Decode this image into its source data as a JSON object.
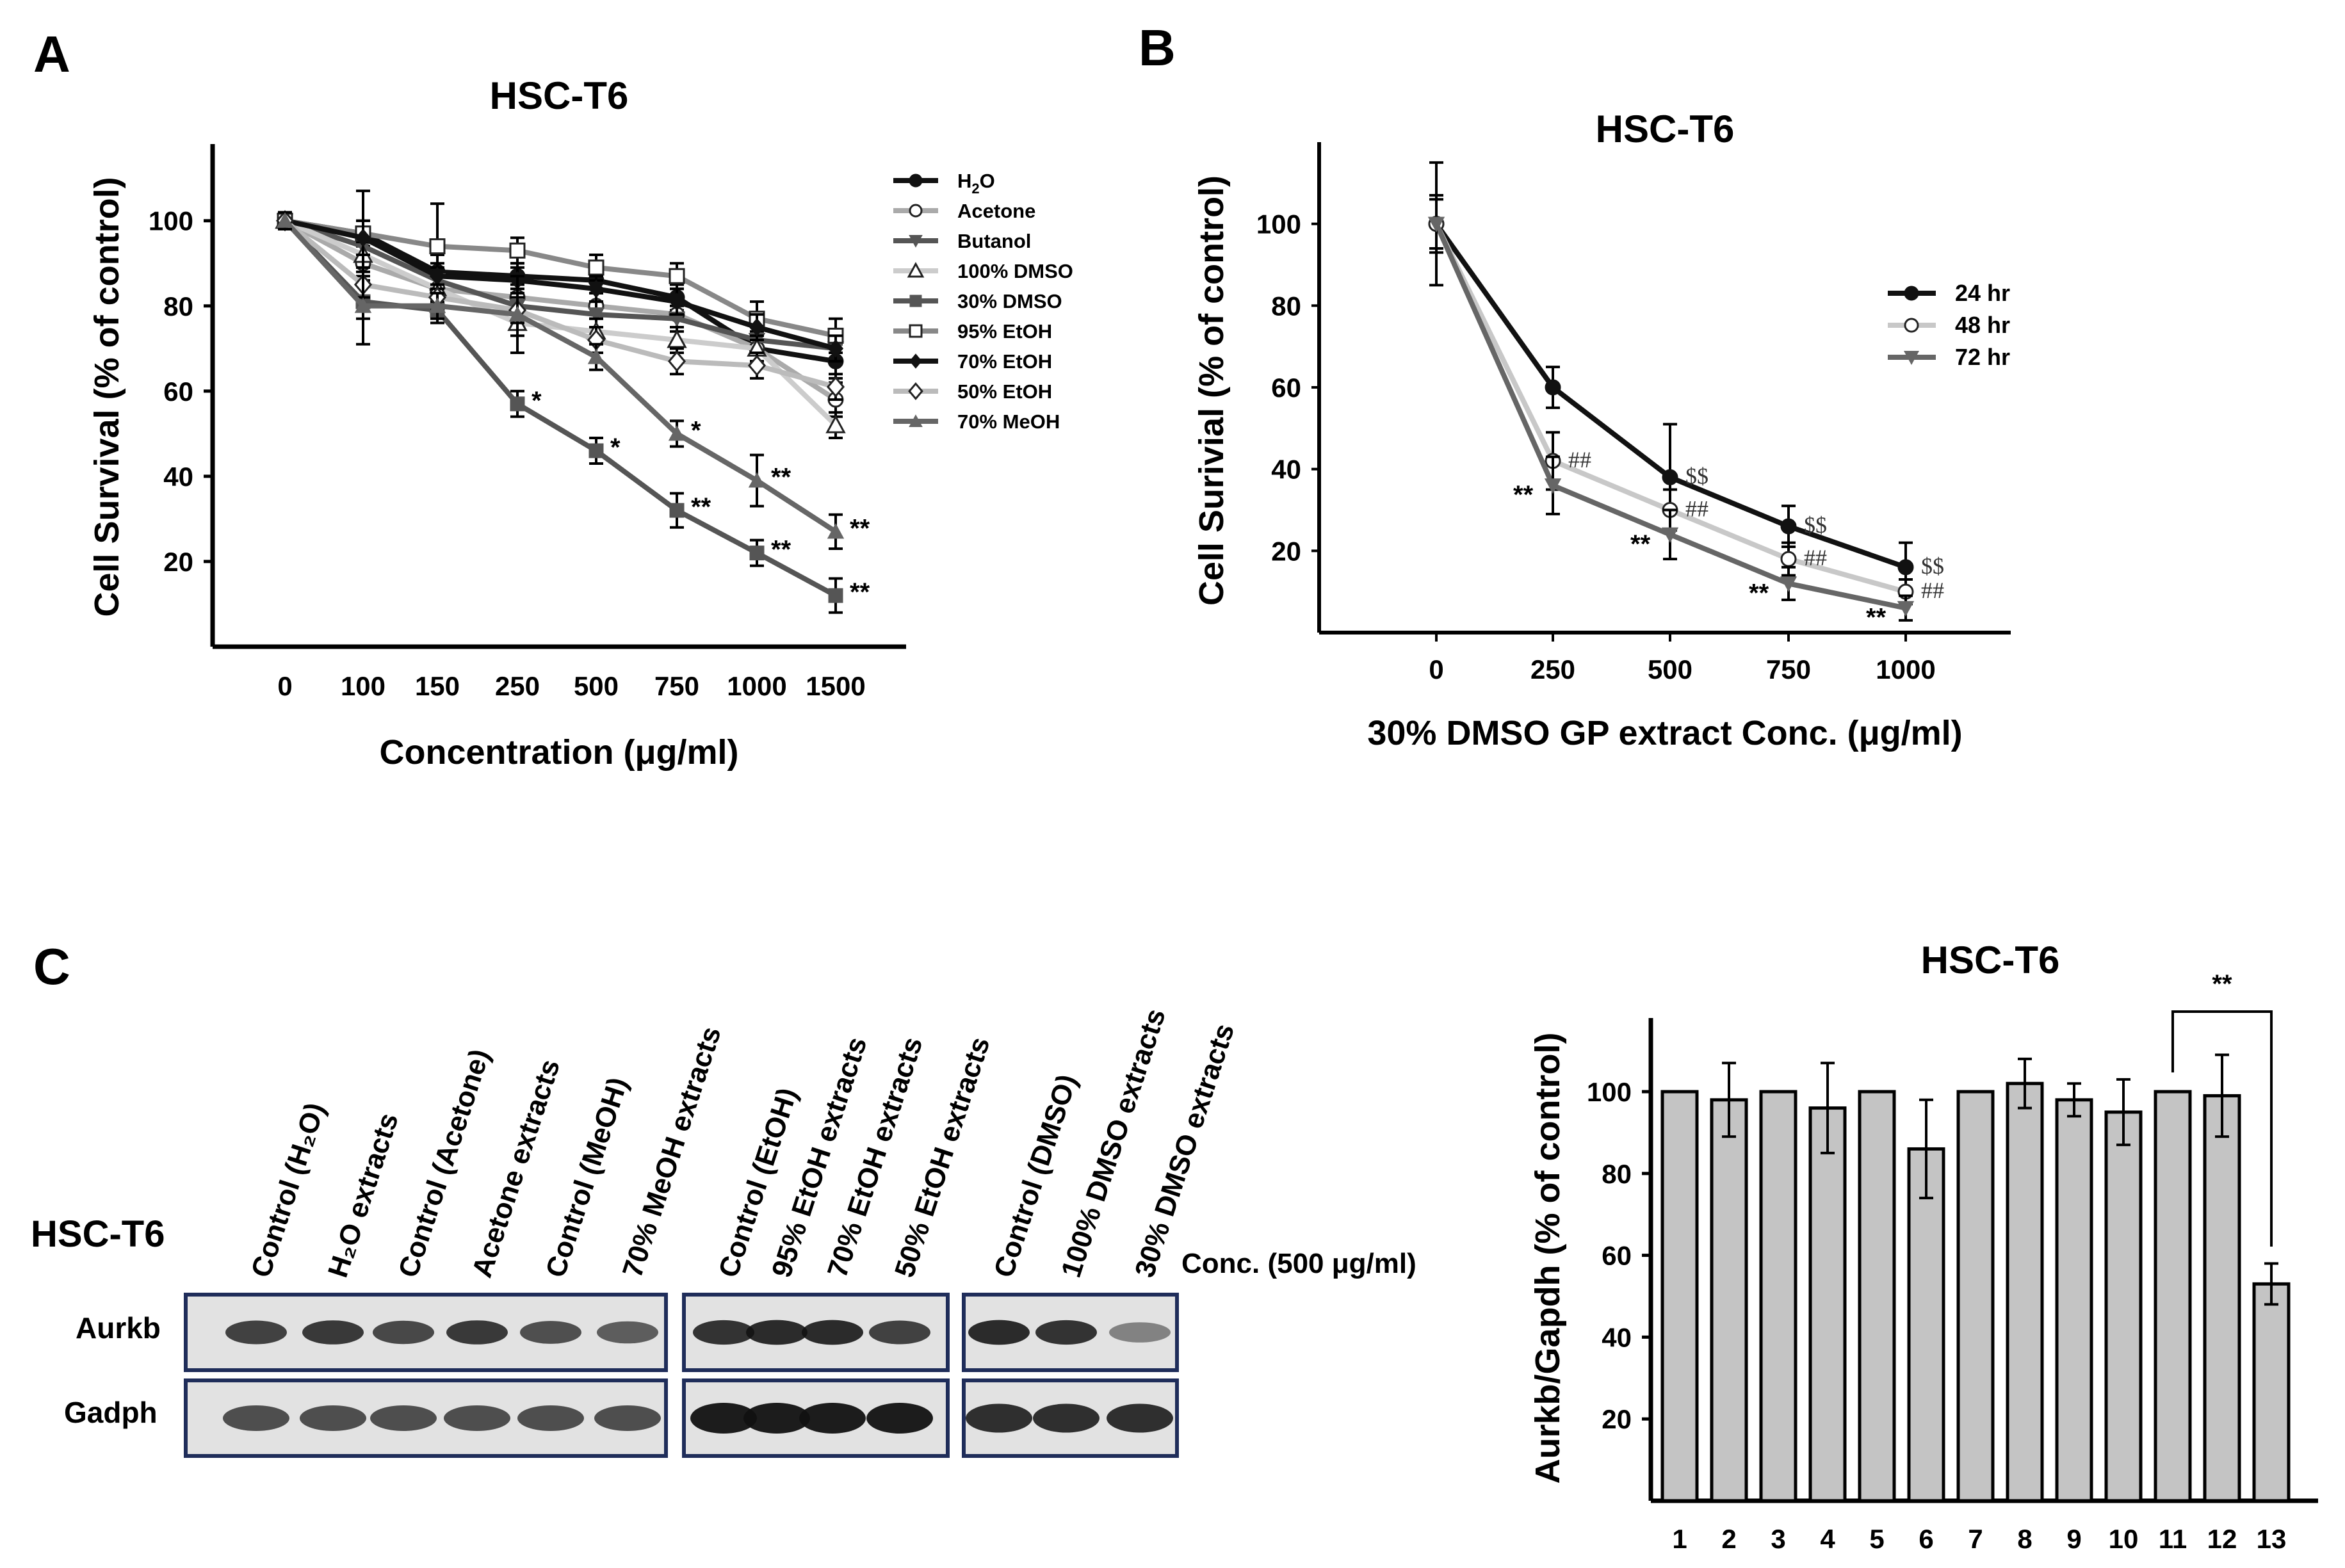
{
  "panels": {
    "a": "A",
    "b": "B",
    "c": "C"
  },
  "chart_data": [
    {
      "type": "line",
      "id": "A",
      "title": "HSC-T6",
      "xlabel": "Concentration (μg/ml)",
      "ylabel": "Cell Survival (% of control)",
      "categories": [
        "0",
        "100",
        "150",
        "250",
        "500",
        "750",
        "1000",
        "1500"
      ],
      "yticks": [
        20,
        40,
        60,
        80,
        100
      ],
      "ylim": [
        0,
        118
      ],
      "legend_position": "top-right",
      "series": [
        {
          "name": "H₂O",
          "legend_label": "H2O",
          "color": "#111111",
          "marker": "circle-filled",
          "values": [
            100,
            97,
            88,
            87,
            86,
            82,
            70,
            67
          ],
          "err": [
            2,
            3,
            4,
            3,
            3,
            3,
            4,
            4
          ]
        },
        {
          "name": "Acetone",
          "color": "#aaaaaa",
          "marker": "circle-open",
          "values": [
            100,
            90,
            84,
            82,
            80,
            78,
            70,
            58
          ],
          "err": [
            2,
            4,
            3,
            3,
            3,
            3,
            3,
            4
          ]
        },
        {
          "name": "Butanol",
          "color": "#555555",
          "marker": "triangle-down",
          "values": [
            100,
            94,
            86,
            80,
            78,
            77,
            72,
            70
          ],
          "err": [
            2,
            3,
            3,
            3,
            3,
            3,
            3,
            3
          ]
        },
        {
          "name": "100% DMSO",
          "color": "#cccccc",
          "marker": "triangle-open",
          "values": [
            100,
            92,
            84,
            76,
            74,
            72,
            70,
            52
          ],
          "err": [
            2,
            3,
            3,
            3,
            3,
            3,
            3,
            3
          ]
        },
        {
          "name": "30% DMSO",
          "color": "#555555",
          "marker": "square-filled",
          "values": [
            100,
            81,
            79,
            57,
            46,
            32,
            22,
            12
          ],
          "err": [
            2,
            4,
            3,
            3,
            3,
            4,
            3,
            4
          ],
          "annotations": [
            "",
            "",
            "",
            "*",
            "*",
            "**",
            "**",
            "**"
          ]
        },
        {
          "name": "95% EtOH",
          "color": "#888888",
          "marker": "square-open",
          "values": [
            100,
            97,
            94,
            93,
            89,
            87,
            77,
            73
          ],
          "err": [
            2,
            10,
            10,
            3,
            3,
            3,
            4,
            4
          ]
        },
        {
          "name": "70% EtOH",
          "color": "#111111",
          "marker": "diamond-filled",
          "values": [
            100,
            96,
            87,
            86,
            84,
            81,
            75,
            70
          ],
          "err": [
            2,
            4,
            3,
            3,
            3,
            3,
            3,
            3
          ]
        },
        {
          "name": "50% EtOH",
          "color": "#bbbbbb",
          "marker": "diamond-open",
          "values": [
            100,
            85,
            82,
            79,
            72,
            67,
            66,
            61
          ],
          "err": [
            2,
            3,
            3,
            3,
            3,
            3,
            3,
            3
          ]
        },
        {
          "name": "70% MeOH",
          "color": "#666666",
          "marker": "triangle-up",
          "values": [
            100,
            80,
            80,
            78,
            68,
            50,
            39,
            27
          ],
          "err": [
            2,
            9,
            3,
            9,
            3,
            3,
            6,
            4
          ],
          "annotations": [
            "",
            "",
            "",
            "",
            "",
            "*",
            "**",
            "**"
          ]
        }
      ]
    },
    {
      "type": "line",
      "id": "B",
      "title": "HSC-T6",
      "xlabel": "30% DMSO GP extract Conc. (μg/ml)",
      "ylabel": "Cell Surivial (% of control)",
      "categories": [
        "0",
        "250",
        "500",
        "750",
        "1000"
      ],
      "yticks": [
        20,
        40,
        60,
        80,
        100
      ],
      "ylim": [
        0,
        120
      ],
      "legend_position": "top-right",
      "series": [
        {
          "name": "24 hr",
          "color": "#111111",
          "marker": "circle-filled",
          "values": [
            100,
            60,
            38,
            26,
            16
          ],
          "err": [
            15,
            5,
            13,
            5,
            6
          ],
          "annotations": [
            "",
            "",
            "$$",
            "$$",
            "$$"
          ]
        },
        {
          "name": "48 hr",
          "color": "#c8c8c8",
          "marker": "circle-open",
          "values": [
            100,
            42,
            30,
            18,
            10
          ],
          "err": [
            7,
            7,
            5,
            4,
            3
          ],
          "annotations": [
            "",
            "##",
            "##",
            "##",
            "##"
          ]
        },
        {
          "name": "72 hr",
          "color": "#666666",
          "marker": "triangle-down",
          "values": [
            100,
            36,
            24,
            12,
            6
          ],
          "err": [
            6,
            7,
            6,
            4,
            3
          ],
          "annotations": [
            "",
            "**",
            "**",
            "**",
            "**"
          ]
        }
      ]
    },
    {
      "type": "bar",
      "id": "C",
      "title": "HSC-T6",
      "xlabel": "",
      "ylabel": "Aurkb/Gapdh (% of control)",
      "categories": [
        "1",
        "2",
        "3",
        "4",
        "5",
        "6",
        "7",
        "8",
        "9",
        "10",
        "11",
        "12",
        "13"
      ],
      "values": [
        100,
        98,
        100,
        96,
        100,
        86,
        100,
        102,
        98,
        95,
        100,
        99,
        53
      ],
      "err": [
        0,
        9,
        0,
        11,
        0,
        12,
        0,
        6,
        4,
        8,
        0,
        10,
        5
      ],
      "yticks": [
        20,
        40,
        60,
        80,
        100
      ],
      "ylim": [
        0,
        118
      ],
      "bracket": {
        "from": "11",
        "to": "13",
        "label": "**"
      }
    }
  ],
  "blot": {
    "title": "HSC-T6",
    "conc_label": "Conc. (500 μg/ml)",
    "rows": [
      "Aurkb",
      "Gadph"
    ],
    "groups": [
      {
        "lanes": [
          "Control (H₂O)",
          "H₂O extracts",
          "Control (Acetone)",
          "Acetone extracts",
          "Control (MeOH)",
          "70% MeOH  extracts"
        ],
        "aurkb": [
          0.75,
          0.8,
          0.7,
          0.8,
          0.65,
          0.55
        ],
        "gadph": [
          0.6,
          0.6,
          0.6,
          0.6,
          0.6,
          0.6
        ]
      },
      {
        "lanes": [
          "Control (EtOH)",
          "95% EtOH extracts",
          "70% EtOH extracts",
          "50% EtOH extracts"
        ],
        "aurkb": [
          0.85,
          0.9,
          0.9,
          0.75
        ],
        "gadph": [
          1.0,
          1.0,
          1.0,
          1.0
        ]
      },
      {
        "lanes": [
          "Control (DMSO)",
          "100% DMSO extracts",
          "30% DMSO extracts"
        ],
        "aurkb": [
          0.9,
          0.85,
          0.3
        ],
        "gadph": [
          0.85,
          0.85,
          0.85
        ]
      }
    ]
  }
}
